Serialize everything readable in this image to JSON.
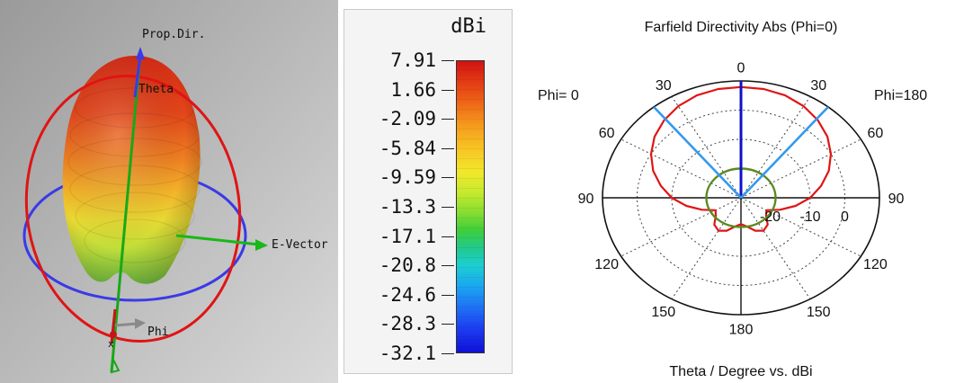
{
  "pattern_3d": {
    "labels": {
      "prop_dir": "Prop.Dir.",
      "theta": "Theta",
      "e_vector": "E-Vector",
      "phi": "Phi",
      "axis_x": "x"
    }
  },
  "color_scale": {
    "unit": "dBi",
    "ticks": [
      "7.91",
      "1.66",
      "-2.09",
      "-5.84",
      "-9.59",
      "-13.3",
      "-17.1",
      "-20.8",
      "-24.6",
      "-28.3",
      "-32.1"
    ],
    "max": 7.91,
    "min": -32.1
  },
  "chart_data": {
    "type": "polar",
    "title": "Farfield Directivity Abs (Phi=0)",
    "xlabel": "Theta / Degree vs. dBi",
    "side_labels": {
      "left": "Phi= 0",
      "right": "Phi=180"
    },
    "angle_tick_labels": [
      "0",
      "30",
      "30",
      "60",
      "60",
      "90",
      "90",
      "120",
      "120",
      "150",
      "150",
      "180"
    ],
    "radial_tick_labels": [
      "-20",
      "-10",
      "0"
    ],
    "radial_range_dbi": [
      -30,
      10
    ],
    "grid": "dotted",
    "series": [
      {
        "color": "#e01414",
        "theta_deg": [
          0,
          10,
          20,
          30,
          40,
          50,
          60,
          70,
          80,
          90,
          100,
          110,
          120,
          130,
          140,
          150,
          160,
          170,
          180
        ],
        "phi0_dbi": [
          7.9,
          7.8,
          7.3,
          6.2,
          4.6,
          2.6,
          0.0,
          -3.0,
          -6.5,
          -10.0,
          -14.0,
          -18.0,
          -21.5,
          -20.5,
          -18.0,
          -17.0,
          -18.0,
          -20.0,
          -21.0
        ],
        "phi180_dbi": [
          7.9,
          7.8,
          7.3,
          6.2,
          4.6,
          2.6,
          0.0,
          -3.0,
          -6.5,
          -10.0,
          -14.0,
          -18.0,
          -21.5,
          -20.5,
          -18.0,
          -17.0,
          -18.0,
          -20.0,
          -21.0
        ]
      },
      {
        "color": "#5a8a1e",
        "constant_dbi": -20
      }
    ],
    "markers": [
      {
        "color": "#1010c8",
        "theta_deg": 0,
        "description": "main lobe direction"
      },
      {
        "color": "#3399ee",
        "theta_deg": -39,
        "description": "3 dB angular width"
      },
      {
        "color": "#3399ee",
        "theta_deg": 39,
        "description": "3 dB angular width"
      }
    ]
  }
}
